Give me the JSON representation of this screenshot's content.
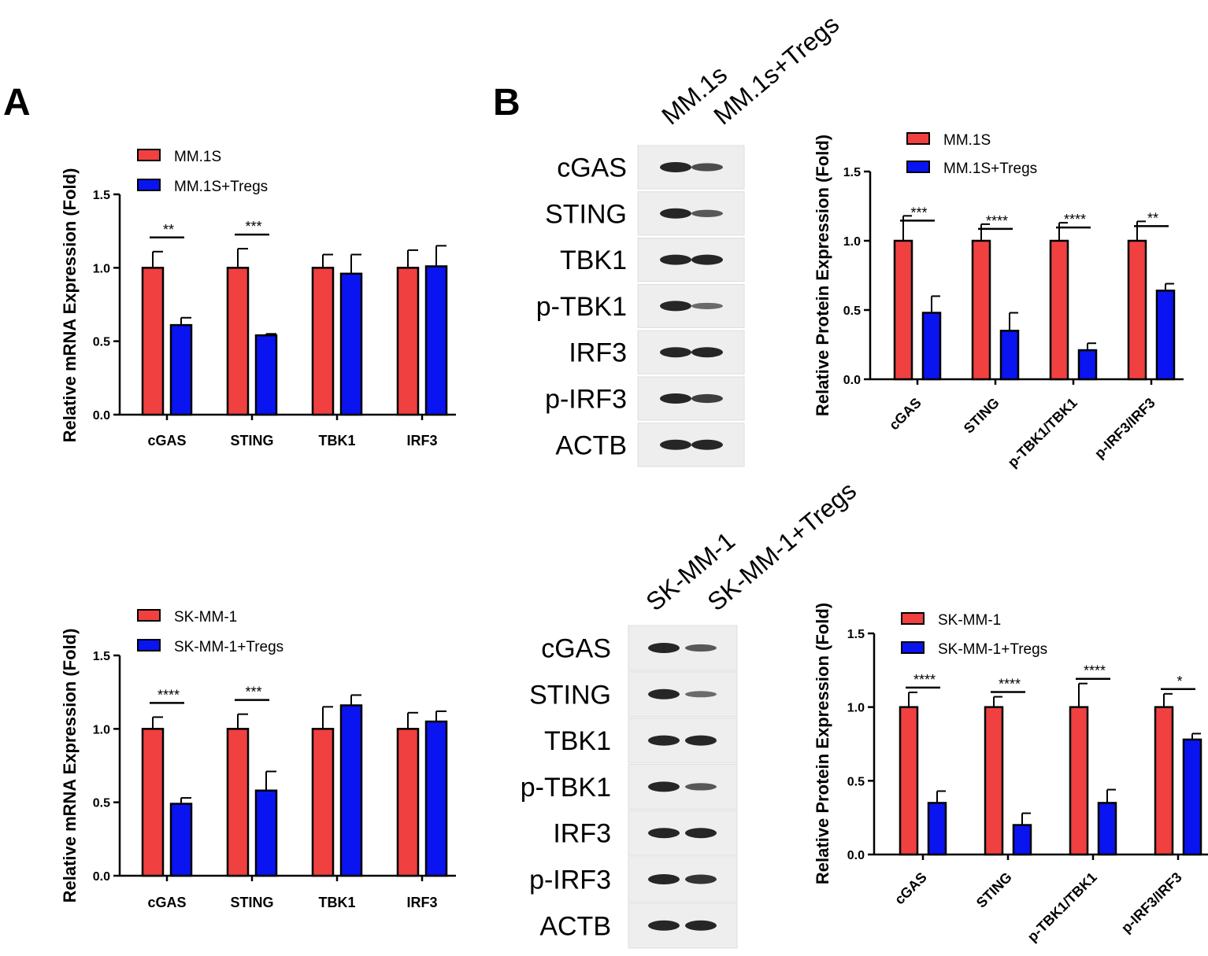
{
  "panels": {
    "a": "A",
    "b": "B"
  },
  "colors": {
    "control": "#f04040",
    "treated": "#0a14f0"
  },
  "blots": [
    {
      "lanes": [
        "MM.1s",
        "MM.1s+Tregs"
      ],
      "rows": [
        {
          "label": "cGAS",
          "intensity": [
            1.0,
            0.48
          ]
        },
        {
          "label": "STING",
          "intensity": [
            1.0,
            0.35
          ]
        },
        {
          "label": "TBK1",
          "intensity": [
            1.0,
            1.0
          ]
        },
        {
          "label": "p-TBK1",
          "intensity": [
            1.0,
            0.21
          ]
        },
        {
          "label": "IRF3",
          "intensity": [
            1.0,
            1.0
          ]
        },
        {
          "label": "p-IRF3",
          "intensity": [
            1.0,
            0.64
          ]
        },
        {
          "label": "ACTB",
          "intensity": [
            1.0,
            1.0
          ]
        }
      ]
    },
    {
      "lanes": [
        "SK-MM-1",
        "SK-MM-1+Tregs"
      ],
      "rows": [
        {
          "label": "cGAS",
          "intensity": [
            1.0,
            0.35
          ]
        },
        {
          "label": "STING",
          "intensity": [
            1.0,
            0.2
          ]
        },
        {
          "label": "TBK1",
          "intensity": [
            1.0,
            1.0
          ]
        },
        {
          "label": "p-TBK1",
          "intensity": [
            1.0,
            0.35
          ]
        },
        {
          "label": "IRF3",
          "intensity": [
            1.0,
            1.0
          ]
        },
        {
          "label": "p-IRF3",
          "intensity": [
            1.0,
            0.78
          ]
        },
        {
          "label": "ACTB",
          "intensity": [
            1.0,
            1.0
          ]
        }
      ]
    }
  ],
  "chart_data": [
    {
      "type": "bar",
      "panel": "A",
      "title": "",
      "xlabel": "",
      "ylabel": "Relative mRNA Expression (Fold)",
      "ylim": [
        0,
        1.5
      ],
      "yticks": [
        "0.0",
        "0.5",
        "1.0",
        "1.5"
      ],
      "categories": [
        "cGAS",
        "STING",
        "TBK1",
        "IRF3"
      ],
      "series": [
        {
          "name": "MM.1S",
          "values": [
            1.0,
            1.0,
            1.0,
            1.0
          ],
          "errors": [
            0.11,
            0.13,
            0.09,
            0.12
          ]
        },
        {
          "name": "MM.1S+Tregs",
          "values": [
            0.61,
            0.54,
            0.96,
            1.01
          ],
          "errors": [
            0.05,
            0.01,
            0.13,
            0.14
          ]
        }
      ],
      "significance": [
        "**",
        "***",
        "",
        ""
      ],
      "tick_rotation": 0,
      "legend": "top-left"
    },
    {
      "type": "bar",
      "panel": "A",
      "title": "",
      "xlabel": "",
      "ylabel": "Relative mRNA Expression (Fold)",
      "ylim": [
        0,
        1.5
      ],
      "yticks": [
        "0.0",
        "0.5",
        "1.0",
        "1.5"
      ],
      "categories": [
        "cGAS",
        "STING",
        "TBK1",
        "IRF3"
      ],
      "series": [
        {
          "name": "SK-MM-1",
          "values": [
            1.0,
            1.0,
            1.0,
            1.0
          ],
          "errors": [
            0.08,
            0.1,
            0.15,
            0.11
          ]
        },
        {
          "name": "SK-MM-1+Tregs",
          "values": [
            0.49,
            0.58,
            1.16,
            1.05
          ],
          "errors": [
            0.04,
            0.13,
            0.07,
            0.07
          ]
        }
      ],
      "significance": [
        "****",
        "***",
        "",
        ""
      ],
      "tick_rotation": 0,
      "legend": "top-left"
    },
    {
      "type": "bar",
      "panel": "B",
      "title": "",
      "xlabel": "",
      "ylabel": "Relative Protein Expression (Fold)",
      "ylim": [
        0,
        1.5
      ],
      "yticks": [
        "0.0",
        "0.5",
        "1.0",
        "1.5"
      ],
      "categories": [
        "cGAS",
        "STING",
        "p-TBK1/TBK1",
        "p-IRF3/IRF3"
      ],
      "series": [
        {
          "name": "MM.1S",
          "values": [
            1.0,
            1.0,
            1.0,
            1.0
          ],
          "errors": [
            0.18,
            0.12,
            0.13,
            0.14
          ]
        },
        {
          "name": "MM.1S+Tregs",
          "values": [
            0.48,
            0.35,
            0.21,
            0.64
          ],
          "errors": [
            0.12,
            0.13,
            0.05,
            0.05
          ]
        }
      ],
      "significance": [
        "***",
        "****",
        "****",
        "**"
      ],
      "tick_rotation": -45,
      "legend": "top"
    },
    {
      "type": "bar",
      "panel": "B",
      "title": "",
      "xlabel": "",
      "ylabel": "Relative Protein Expression (Fold)",
      "ylim": [
        0,
        1.5
      ],
      "yticks": [
        "0.0",
        "0.5",
        "1.0",
        "1.5"
      ],
      "categories": [
        "cGAS",
        "STING",
        "p-TBK1/TBK1",
        "p-IRF3/IRF3"
      ],
      "series": [
        {
          "name": "SK-MM-1",
          "values": [
            1.0,
            1.0,
            1.0,
            1.0
          ],
          "errors": [
            0.1,
            0.07,
            0.16,
            0.09
          ]
        },
        {
          "name": "SK-MM-1+Tregs",
          "values": [
            0.35,
            0.2,
            0.35,
            0.78
          ],
          "errors": [
            0.08,
            0.08,
            0.09,
            0.04
          ]
        }
      ],
      "significance": [
        "****",
        "****",
        "****",
        "*"
      ],
      "tick_rotation": -45,
      "legend": "top"
    }
  ]
}
